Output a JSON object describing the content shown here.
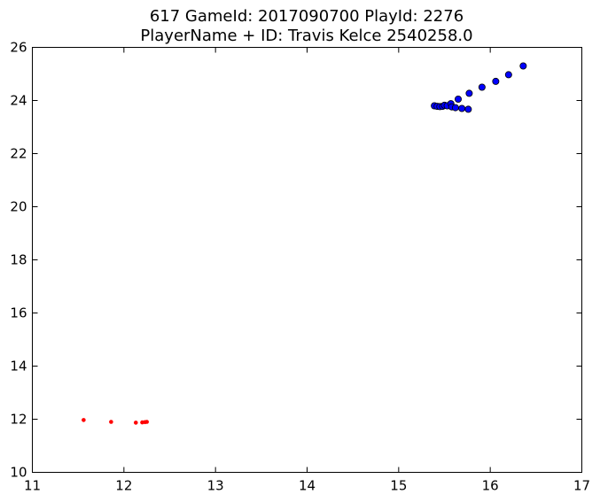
{
  "chart_data": {
    "type": "scatter",
    "title_lines": [
      "617 GameId: 2017090700 PlayId: 2276",
      "PlayerName + ID: Travis Kelce 2540258.0"
    ],
    "xlabel": "",
    "ylabel": "",
    "xlim": [
      11,
      17
    ],
    "ylim": [
      10,
      26
    ],
    "x_ticks": [
      11,
      12,
      13,
      14,
      15,
      16,
      17
    ],
    "y_ticks": [
      10,
      12,
      14,
      16,
      18,
      20,
      22,
      24,
      26
    ],
    "grid": false,
    "legend": "none",
    "series": [
      {
        "color": "#ff0000",
        "marker": "small-dot",
        "points": [
          [
            11.56,
            11.97
          ],
          [
            11.86,
            11.9
          ],
          [
            12.13,
            11.87
          ],
          [
            12.2,
            11.88
          ],
          [
            12.23,
            11.89
          ],
          [
            12.25,
            11.9
          ]
        ]
      },
      {
        "color": "#0000ff",
        "marker": "circle",
        "points": [
          [
            15.39,
            23.8
          ],
          [
            15.42,
            23.78
          ],
          [
            15.45,
            23.77
          ],
          [
            15.48,
            23.78
          ],
          [
            15.5,
            23.82
          ],
          [
            15.53,
            23.8
          ],
          [
            15.57,
            23.88
          ],
          [
            15.58,
            23.76
          ],
          [
            15.62,
            23.73
          ],
          [
            15.65,
            24.05
          ],
          [
            15.69,
            23.7
          ],
          [
            15.76,
            23.67
          ],
          [
            15.77,
            24.27
          ],
          [
            15.91,
            24.5
          ],
          [
            16.06,
            24.72
          ],
          [
            16.2,
            24.97
          ],
          [
            16.36,
            25.3
          ]
        ]
      }
    ]
  }
}
